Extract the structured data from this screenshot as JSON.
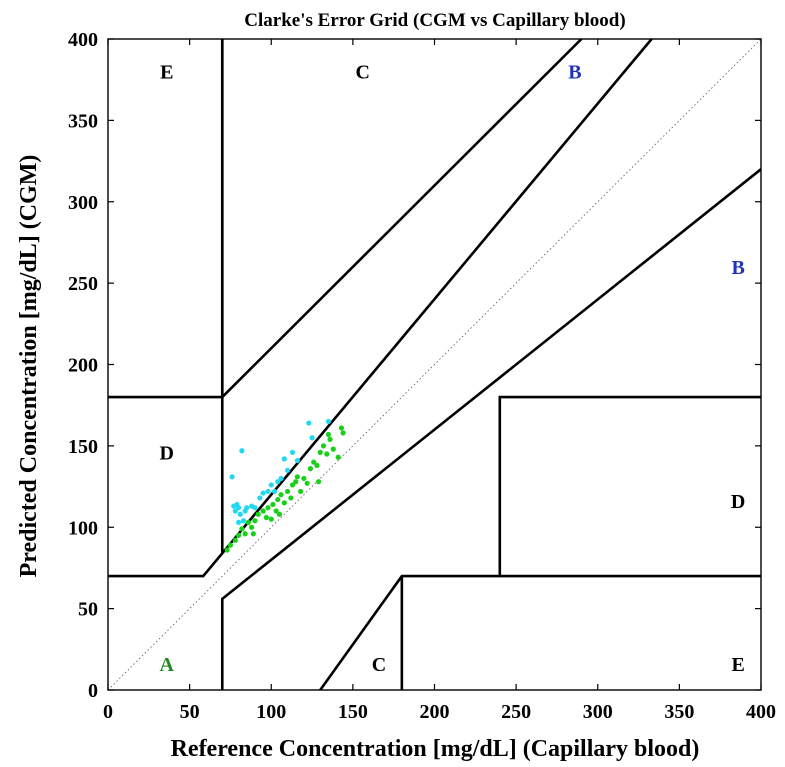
{
  "chart_data": {
    "type": "scatter",
    "title": "Clarke's Error Grid (CGM vs Capillary blood)",
    "xlabel": "Reference Concentration [mg/dL] (Capillary blood)",
    "ylabel": "Predicted Concentration [mg/dL] (CGM)",
    "xlim": [
      0,
      400
    ],
    "ylim": [
      0,
      400
    ],
    "xticks": [
      "0",
      "50",
      "100",
      "150",
      "200",
      "250",
      "300",
      "350",
      "400"
    ],
    "yticks": [
      "0",
      "50",
      "100",
      "150",
      "200",
      "250",
      "300",
      "350",
      "400"
    ],
    "grid": false,
    "zone_boundaries": [
      [
        [
          70,
          400
        ],
        [
          70,
          180
        ],
        [
          0,
          180
        ]
      ],
      [
        [
          70,
          180
        ],
        [
          290,
          400
        ]
      ],
      [
        [
          0,
          70
        ],
        [
          58.33,
          70
        ],
        [
          70,
          84
        ],
        [
          70,
          400
        ]
      ],
      [
        [
          70,
          84
        ],
        [
          333,
          400
        ]
      ],
      [
        [
          70,
          0
        ],
        [
          70,
          56
        ],
        [
          400,
          320
        ]
      ],
      [
        [
          130,
          0
        ],
        [
          180,
          70
        ],
        [
          240,
          70
        ],
        [
          400,
          70
        ]
      ],
      [
        [
          180,
          0
        ],
        [
          180,
          70
        ]
      ],
      [
        [
          240,
          70
        ],
        [
          240,
          180
        ],
        [
          400,
          180
        ]
      ]
    ],
    "identity_line": [
      [
        0,
        0
      ],
      [
        400,
        400
      ]
    ],
    "zone_labels": [
      {
        "text": "E",
        "x": 36,
        "y": 380,
        "color": "#000000"
      },
      {
        "text": "C",
        "x": 156,
        "y": 380,
        "color": "#000000"
      },
      {
        "text": "B",
        "x": 286,
        "y": 380,
        "color": "#2233bb"
      },
      {
        "text": "B",
        "x": 386,
        "y": 260,
        "color": "#2233bb"
      },
      {
        "text": "D",
        "x": 36,
        "y": 146,
        "color": "#000000"
      },
      {
        "text": "D",
        "x": 386,
        "y": 116,
        "color": "#000000"
      },
      {
        "text": "A",
        "x": 36,
        "y": 16,
        "color": "#228822"
      },
      {
        "text": "C",
        "x": 166,
        "y": 16,
        "color": "#000000"
      },
      {
        "text": "E",
        "x": 386,
        "y": 16,
        "color": "#000000"
      }
    ],
    "series": [
      {
        "color": "#19d019",
        "points": [
          [
            73,
            86
          ],
          [
            75,
            89
          ],
          [
            78,
            92
          ],
          [
            80,
            95
          ],
          [
            82,
            99
          ],
          [
            84,
            96
          ],
          [
            86,
            103
          ],
          [
            88,
            100
          ],
          [
            89,
            96
          ],
          [
            90,
            104
          ],
          [
            92,
            108
          ],
          [
            95,
            110
          ],
          [
            97,
            106
          ],
          [
            98,
            112
          ],
          [
            100,
            105
          ],
          [
            101,
            114
          ],
          [
            103,
            110
          ],
          [
            104,
            117
          ],
          [
            105,
            108
          ],
          [
            106,
            120
          ],
          [
            108,
            115
          ],
          [
            110,
            122
          ],
          [
            112,
            118
          ],
          [
            113,
            126
          ],
          [
            115,
            128
          ],
          [
            116,
            131
          ],
          [
            118,
            122
          ],
          [
            120,
            130
          ],
          [
            122,
            127
          ],
          [
            124,
            136
          ],
          [
            126,
            140
          ],
          [
            128,
            138
          ],
          [
            129,
            128
          ],
          [
            130,
            146
          ],
          [
            132,
            150
          ],
          [
            134,
            145
          ],
          [
            135,
            157
          ],
          [
            136,
            154
          ],
          [
            138,
            148
          ],
          [
            141,
            143
          ],
          [
            143,
            161
          ],
          [
            144,
            158
          ]
        ]
      },
      {
        "color": "#22d8f0",
        "points": [
          [
            76,
            131
          ],
          [
            77,
            113
          ],
          [
            78,
            110
          ],
          [
            79,
            114
          ],
          [
            80,
            112
          ],
          [
            80,
            103
          ],
          [
            81,
            108
          ],
          [
            82,
            147
          ],
          [
            83,
            104
          ],
          [
            84,
            110
          ],
          [
            85,
            112
          ],
          [
            88,
            113
          ],
          [
            90,
            112
          ],
          [
            93,
            118
          ],
          [
            95,
            121
          ],
          [
            98,
            122
          ],
          [
            100,
            126
          ],
          [
            102,
            122
          ],
          [
            104,
            128
          ],
          [
            106,
            130
          ],
          [
            108,
            142
          ],
          [
            110,
            135
          ],
          [
            113,
            146
          ],
          [
            116,
            141
          ],
          [
            123,
            164
          ],
          [
            125,
            155
          ],
          [
            135,
            165
          ]
        ]
      }
    ]
  }
}
